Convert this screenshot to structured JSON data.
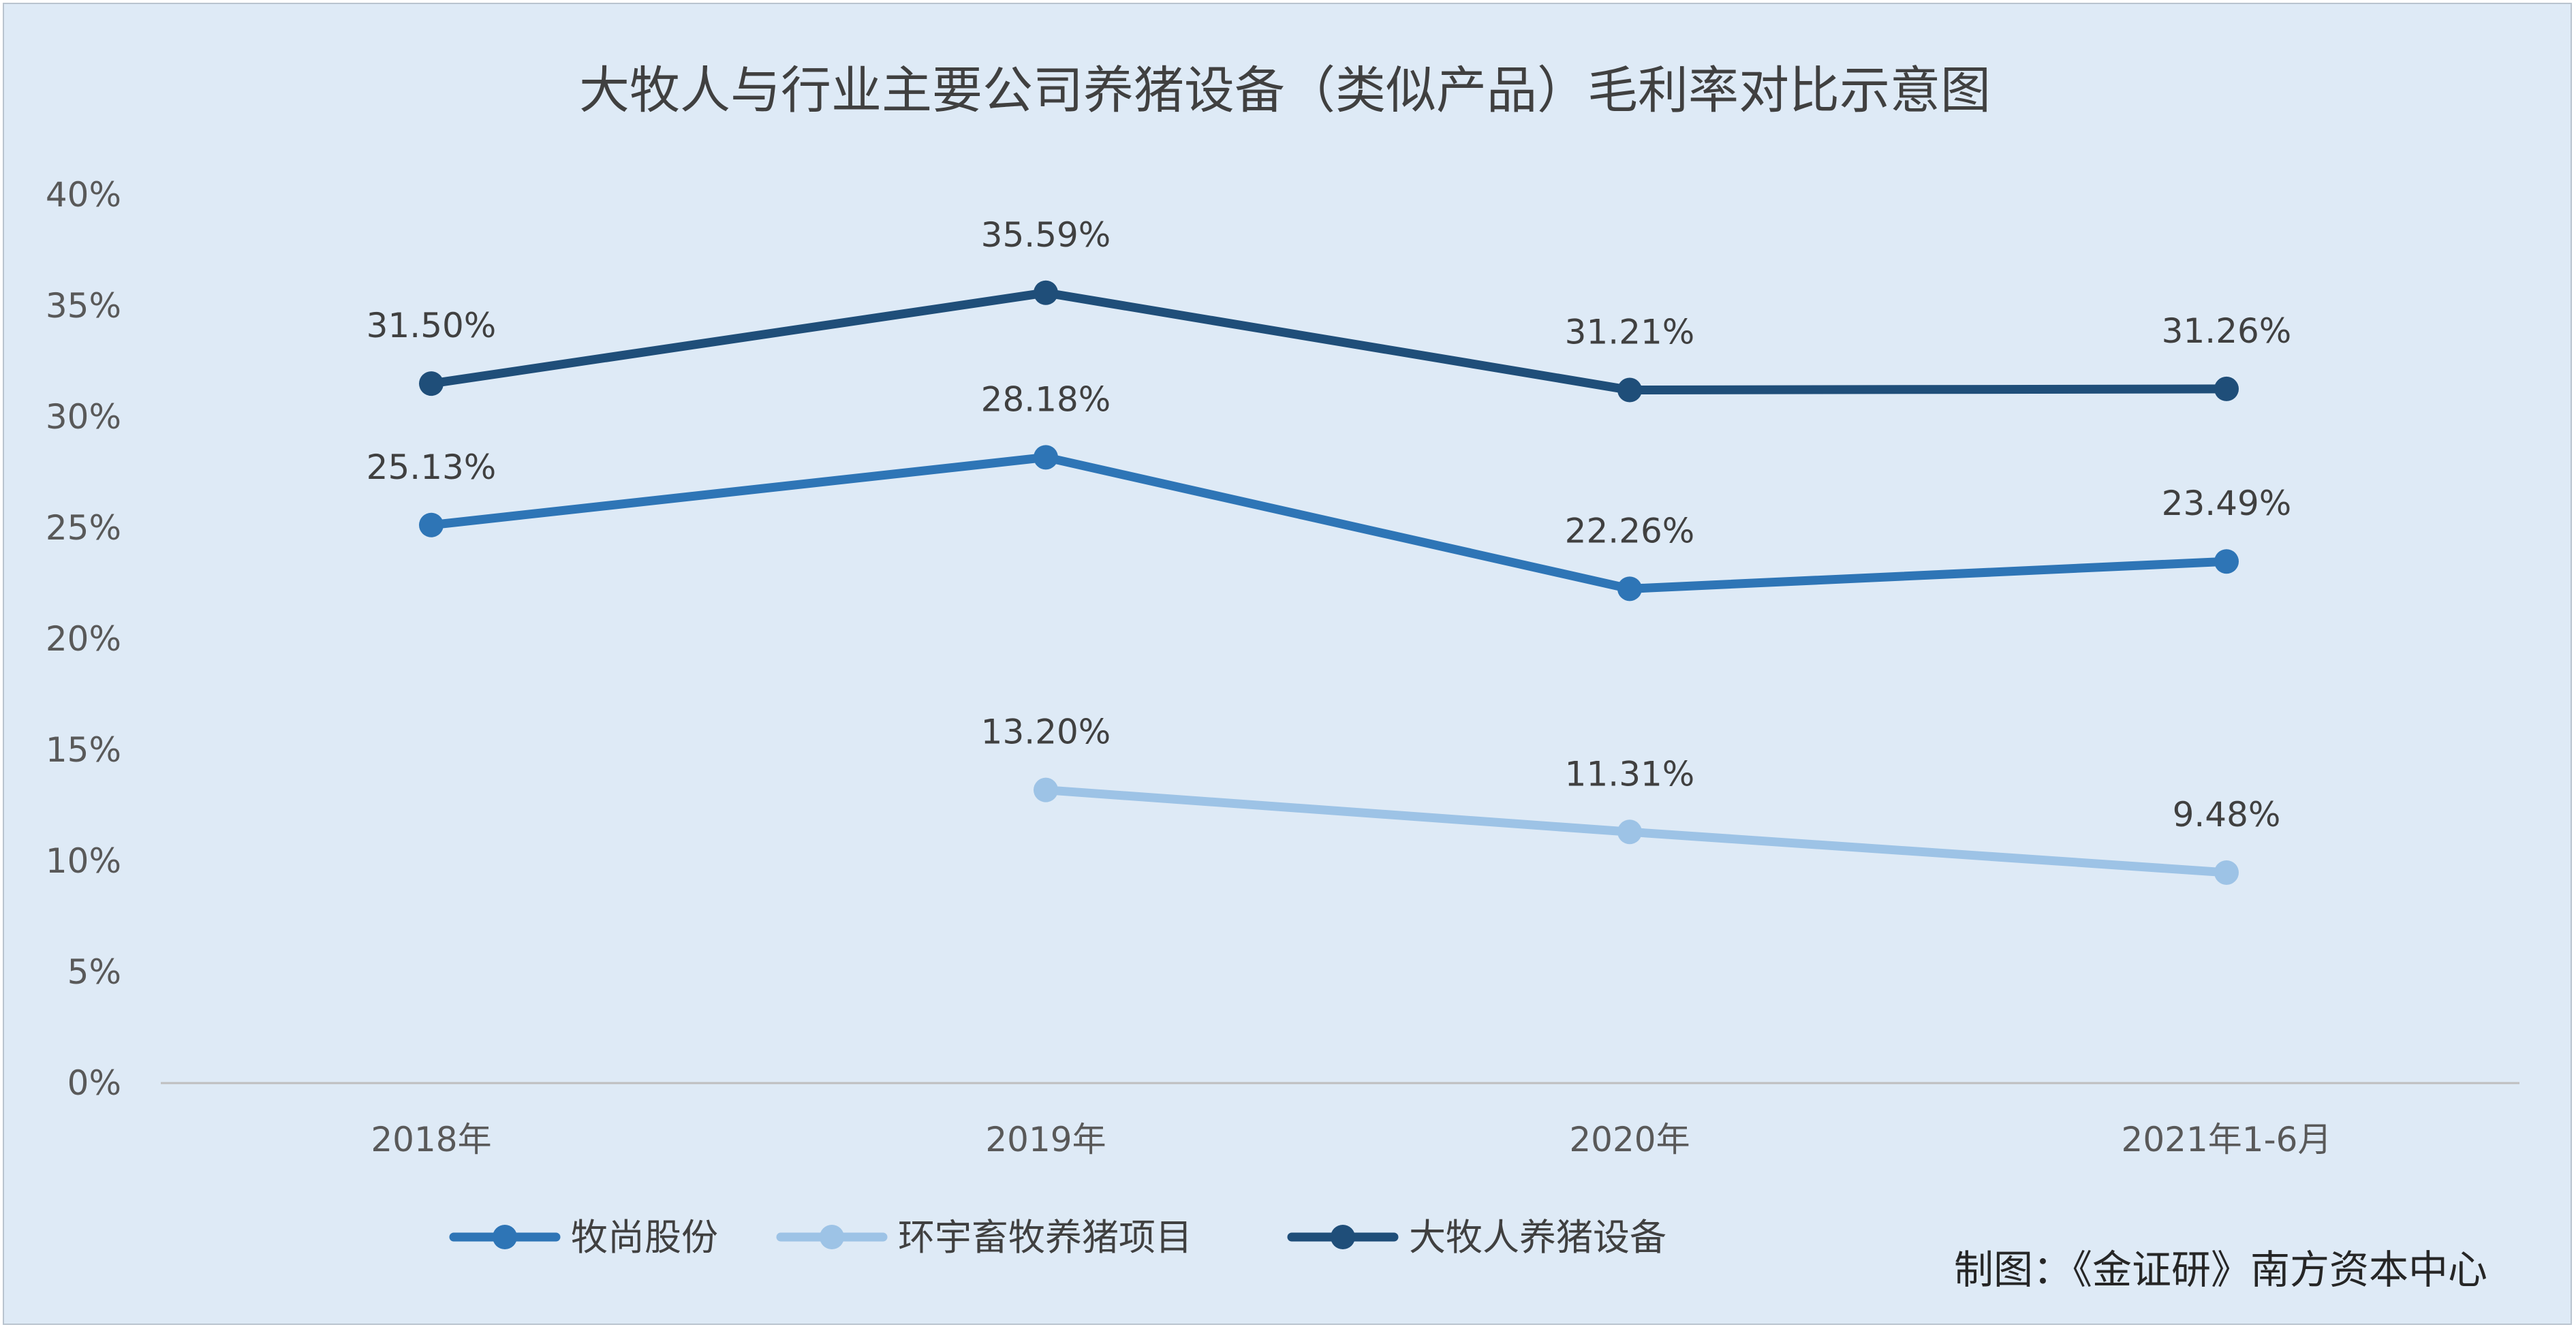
{
  "chart_data": {
    "type": "line",
    "title": "大牧人与行业主要公司养猪设备（类似产品）毛利率对比示意图",
    "categories": [
      "2018年",
      "2019年",
      "2020年",
      "2021年1-6月"
    ],
    "y_ticks": [
      "0%",
      "5%",
      "10%",
      "15%",
      "20%",
      "25%",
      "30%",
      "35%",
      "40%"
    ],
    "ylim": [
      0,
      40
    ],
    "grid": false,
    "legend_position": "bottom",
    "series": [
      {
        "name": "牧尚股份",
        "color": "#2e75b6",
        "values": [
          25.13,
          28.18,
          22.26,
          23.49
        ],
        "labels": [
          "25.13%",
          "28.18%",
          "22.26%",
          "23.49%"
        ]
      },
      {
        "name": "环宇畜牧养猪项目",
        "color": "#9dc3e6",
        "values": [
          null,
          13.2,
          11.31,
          9.48
        ],
        "labels": [
          "",
          "13.20%",
          "11.31%",
          "9.48%"
        ]
      },
      {
        "name": "大牧人养猪设备",
        "color": "#1f4e79",
        "values": [
          31.5,
          35.59,
          31.21,
          31.26
        ],
        "labels": [
          "31.50%",
          "35.59%",
          "31.21%",
          "31.26%"
        ]
      }
    ]
  },
  "footer": {
    "credit": "制图：《金证研》南方资本中心"
  }
}
